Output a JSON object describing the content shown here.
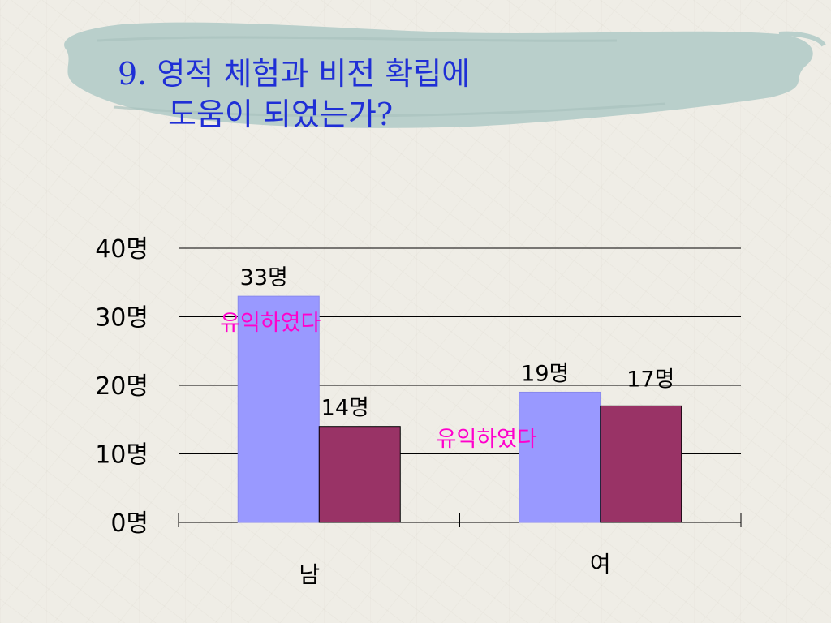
{
  "slide": {
    "title_line1": "9. 영적 체험과 비전 확립에",
    "title_line2": "도움이 되었는가?"
  },
  "colors": {
    "title": "#1f2fd6",
    "series_a": "#9999ff",
    "series_b": "#993366",
    "annotation": "#ff00cc",
    "brush": "#b9cfcb"
  },
  "chart_data": {
    "type": "bar",
    "categories": [
      "남",
      "여"
    ],
    "series": [
      {
        "values": [
          33,
          19
        ],
        "value_labels": [
          "33명",
          "19명"
        ]
      },
      {
        "values": [
          14,
          17
        ],
        "value_labels": [
          "14명",
          "17명"
        ]
      }
    ],
    "ylim": [
      0,
      40
    ],
    "yticks": [
      0,
      10,
      20,
      30,
      40
    ],
    "ytick_labels": [
      "0명",
      "10명",
      "20명",
      "30명",
      "40명"
    ],
    "annotations": [
      "유익하였다",
      "유익하였다"
    ],
    "grid": true,
    "legend": "none"
  }
}
